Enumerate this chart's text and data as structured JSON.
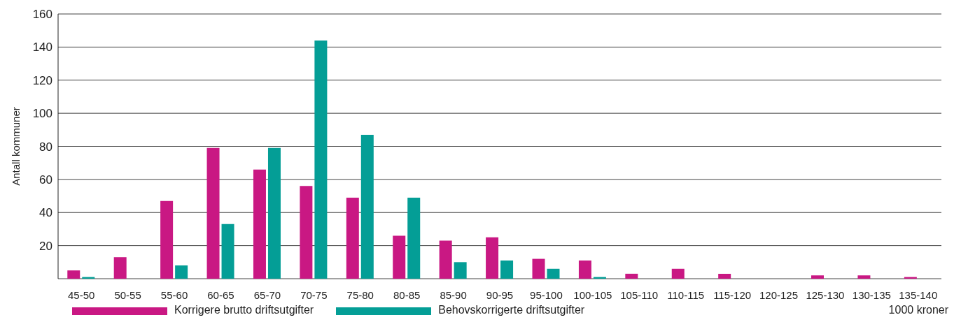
{
  "chart_data": {
    "type": "bar",
    "ylabel": "Antall kommuner",
    "xlabel": "1000 kroner",
    "categories": [
      "45-50",
      "50-55",
      "55-60",
      "60-65",
      "65-70",
      "70-75",
      "75-80",
      "80-85",
      "85-90",
      "90-95",
      "95-100",
      "100-105",
      "105-110",
      "110-115",
      "115-120",
      "120-125",
      "125-130",
      "130-135",
      "135-140"
    ],
    "series": [
      {
        "name": "Korrigere brutto driftsutgifter",
        "color": "#c91883",
        "values": [
          5,
          13,
          47,
          79,
          66,
          56,
          49,
          26,
          23,
          25,
          12,
          11,
          3,
          6,
          3,
          0,
          2,
          2,
          1
        ]
      },
      {
        "name": "Behovskorrigerte driftsutgifter",
        "color": "#049e96",
        "values": [
          1,
          0,
          8,
          33,
          79,
          144,
          87,
          49,
          10,
          11,
          6,
          1,
          0,
          0,
          0,
          0,
          0,
          0,
          0
        ]
      }
    ],
    "ylim": [
      0,
      160
    ],
    "yticks": [
      {
        "value": 0,
        "label": null
      },
      20,
      40,
      60,
      80,
      100,
      120,
      140,
      160
    ],
    "grid": "y",
    "legend": "bottom left"
  }
}
